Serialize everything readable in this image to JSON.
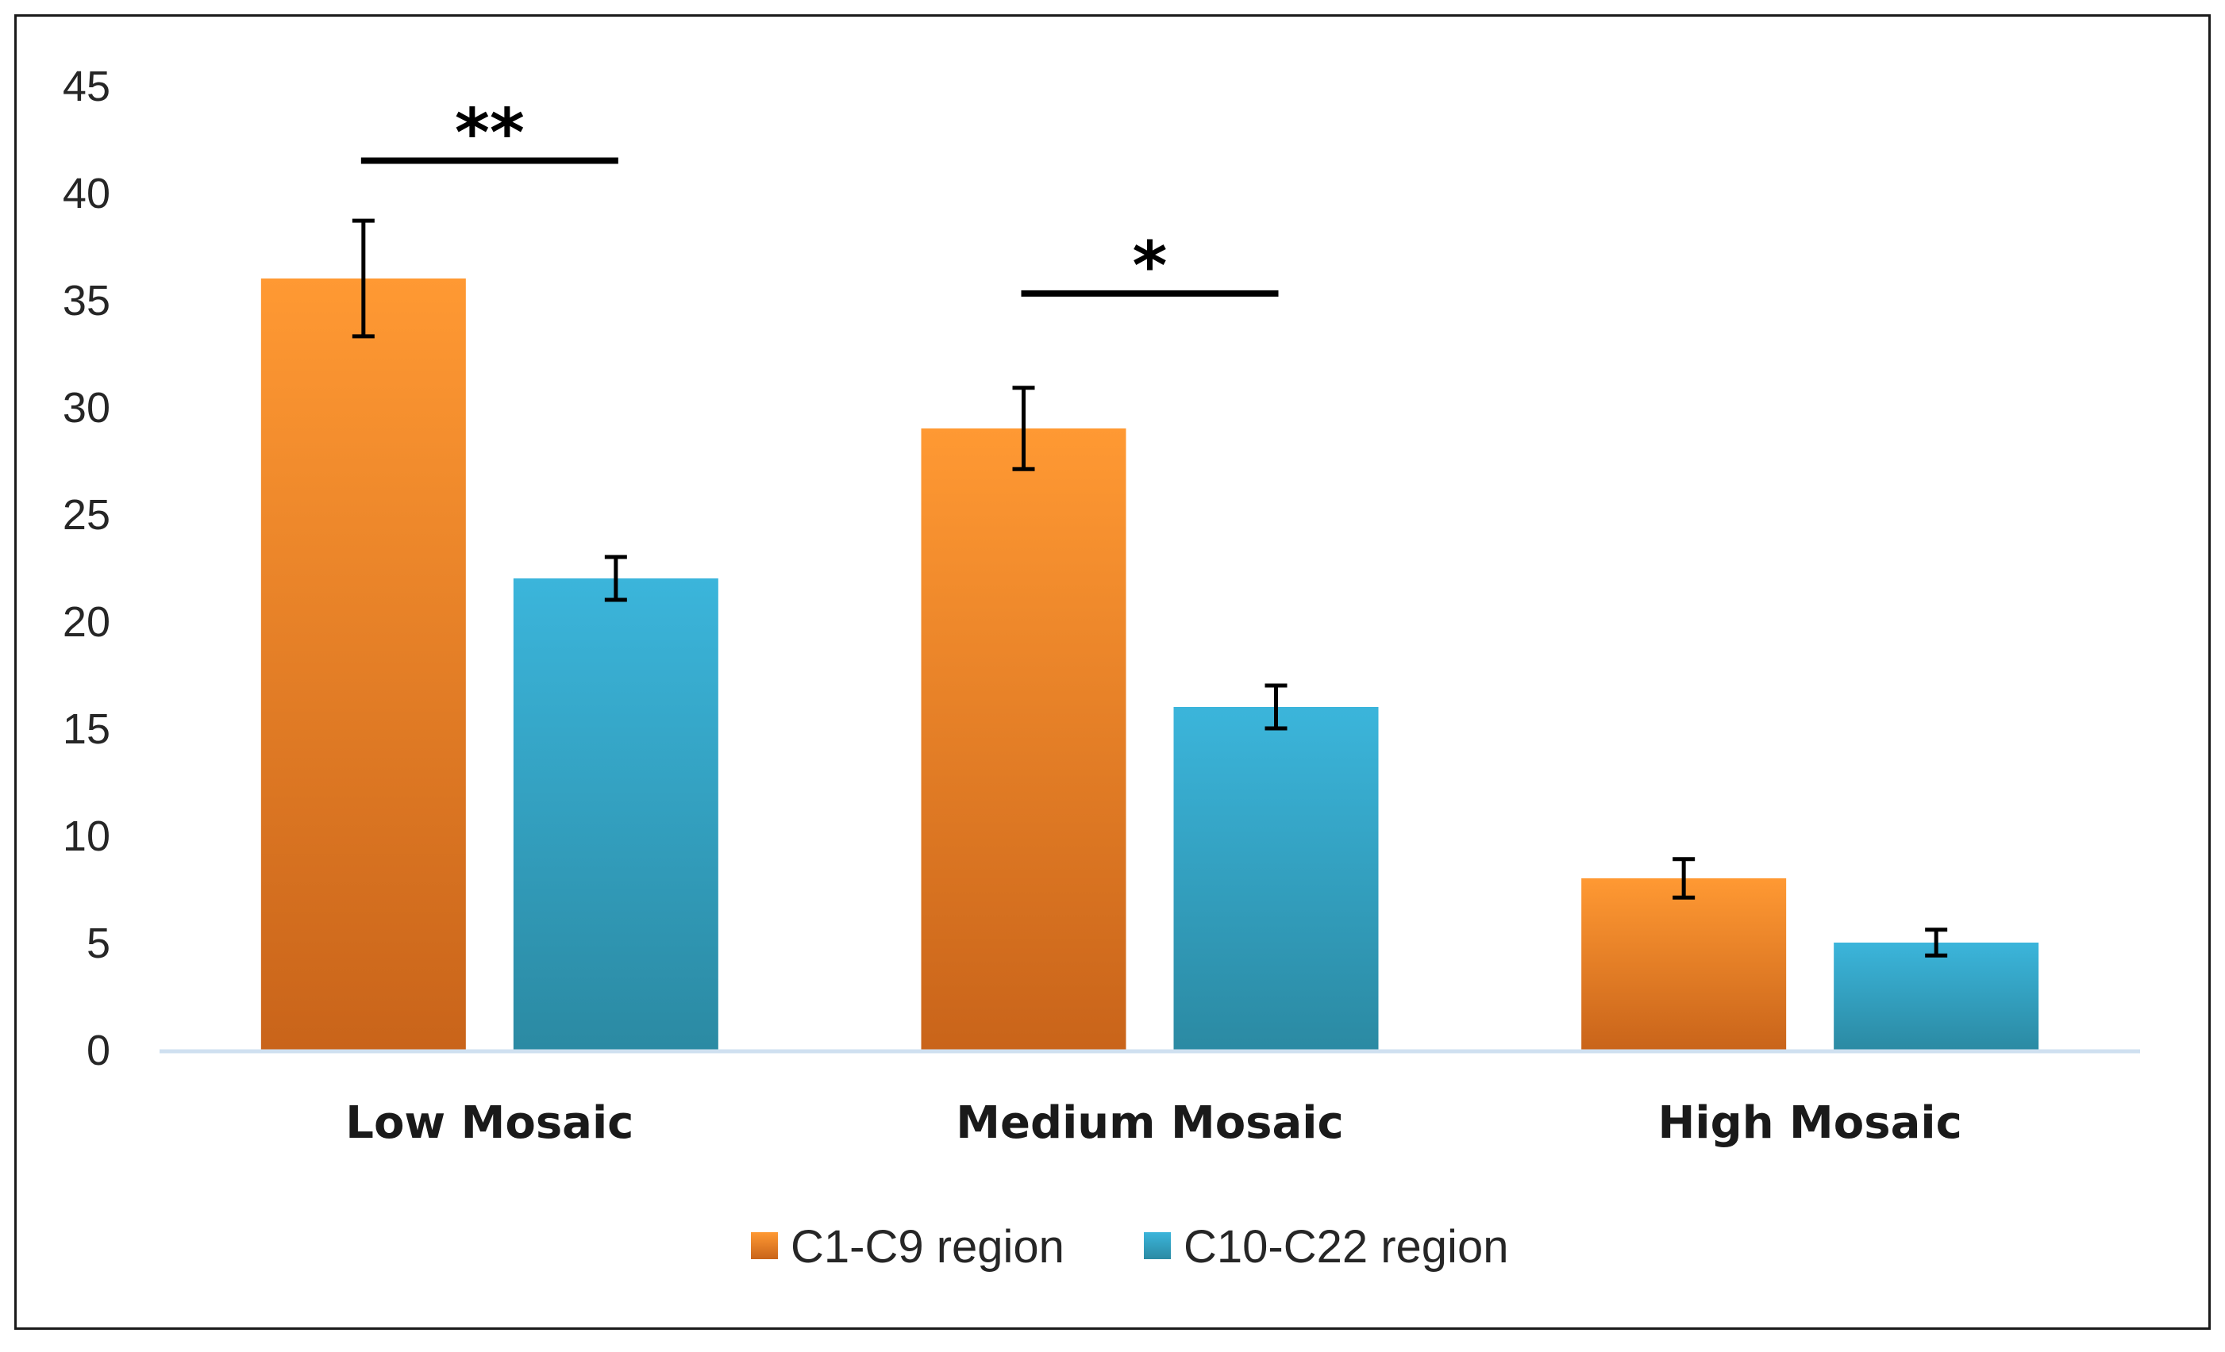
{
  "chart_data": {
    "type": "bar",
    "title": "",
    "xlabel": "",
    "ylabel": "",
    "categories": [
      "Low Mosaic",
      "Medium Mosaic",
      "High Mosaic"
    ],
    "series": [
      {
        "name": "C1-C9 region",
        "values": [
          36,
          29,
          8
        ],
        "error": [
          2.7,
          1.9,
          0.9
        ],
        "color_top": "#ff9933",
        "color_bottom": "#c9641a"
      },
      {
        "name": "C10-C22 region",
        "values": [
          22,
          16,
          5
        ],
        "error": [
          1.0,
          1.0,
          0.6
        ],
        "color_top": "#3bb5db",
        "color_bottom": "#2b8aa3"
      }
    ],
    "ylim": [
      0,
      45
    ],
    "yticks": [
      0,
      5,
      10,
      15,
      20,
      25,
      30,
      35,
      40,
      45
    ],
    "grid": false,
    "legend_position": "bottom",
    "axis_color": "#cfe0f0",
    "annotations": [
      {
        "text": "**",
        "category": "Low Mosaic",
        "y": 41.5
      },
      {
        "text": "*",
        "category": "Medium Mosaic",
        "y": 35.3
      }
    ]
  }
}
